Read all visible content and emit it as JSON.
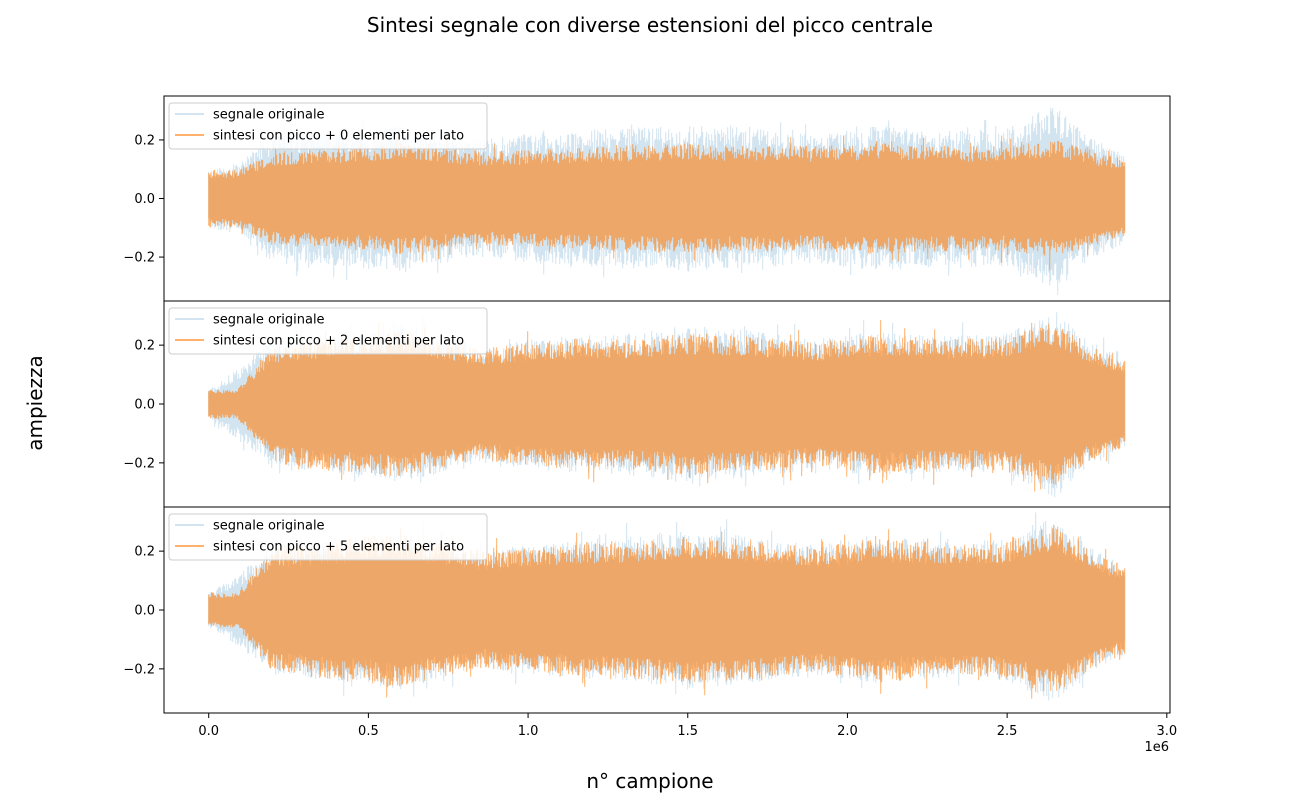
{
  "chart_data": [
    {
      "type": "line",
      "figure_title": "Sintesi segnale con diverse estensioni del picco centrale",
      "xlabel": "n° campione",
      "ylabel": "ampiezza",
      "x_offset_label": "1e6",
      "xlim": [
        -140000,
        3010000
      ],
      "ylim": [
        -0.35,
        0.35
      ],
      "x_ticks": [
        0,
        500000,
        1000000,
        1500000,
        2000000,
        2500000,
        3000000
      ],
      "x_tick_labels": [
        "0.0",
        "0.5",
        "1.0",
        "1.5",
        "2.0",
        "2.5",
        "3.0"
      ],
      "y_ticks": [
        -0.2,
        0.0,
        0.2
      ],
      "y_tick_labels": [
        "−0.2",
        "0.0",
        "0.2"
      ],
      "signal_start": 0,
      "signal_end": 2870000,
      "colors": {
        "original": "#1f77b4",
        "synthesis": "#ff7f0e"
      },
      "subplots": [
        {
          "legend": [
            "segnale originale",
            "sintesi con picco + 0 elementi per lato"
          ],
          "original_envelope": [
            [
              0,
              0.1
            ],
            [
              90000,
              0.12
            ],
            [
              200000,
              0.22
            ],
            [
              400000,
              0.24
            ],
            [
              600000,
              0.25
            ],
            [
              850000,
              0.2
            ],
            [
              1100000,
              0.23
            ],
            [
              1300000,
              0.24
            ],
            [
              1500000,
              0.25
            ],
            [
              1700000,
              0.24
            ],
            [
              1900000,
              0.22
            ],
            [
              2100000,
              0.25
            ],
            [
              2300000,
              0.23
            ],
            [
              2500000,
              0.24
            ],
            [
              2650000,
              0.32
            ],
            [
              2750000,
              0.22
            ],
            [
              2870000,
              0.15
            ]
          ],
          "synthesis_envelope": [
            [
              0,
              0.1
            ],
            [
              90000,
              0.1
            ],
            [
              200000,
              0.16
            ],
            [
              400000,
              0.17
            ],
            [
              600000,
              0.19
            ],
            [
              850000,
              0.16
            ],
            [
              1100000,
              0.17
            ],
            [
              1300000,
              0.18
            ],
            [
              1500000,
              0.19
            ],
            [
              1700000,
              0.18
            ],
            [
              1900000,
              0.18
            ],
            [
              2100000,
              0.19
            ],
            [
              2300000,
              0.18
            ],
            [
              2500000,
              0.18
            ],
            [
              2650000,
              0.2
            ],
            [
              2750000,
              0.17
            ],
            [
              2870000,
              0.13
            ]
          ]
        },
        {
          "legend": [
            "segnale originale",
            "sintesi con picco + 2 elementi per lato"
          ],
          "original_envelope": [
            [
              0,
              0.05
            ],
            [
              90000,
              0.12
            ],
            [
              200000,
              0.22
            ],
            [
              400000,
              0.24
            ],
            [
              600000,
              0.27
            ],
            [
              850000,
              0.2
            ],
            [
              1100000,
              0.23
            ],
            [
              1300000,
              0.24
            ],
            [
              1500000,
              0.27
            ],
            [
              1700000,
              0.25
            ],
            [
              1900000,
              0.22
            ],
            [
              2100000,
              0.25
            ],
            [
              2300000,
              0.23
            ],
            [
              2500000,
              0.24
            ],
            [
              2650000,
              0.32
            ],
            [
              2750000,
              0.22
            ],
            [
              2870000,
              0.15
            ]
          ],
          "synthesis_envelope": [
            [
              0,
              0.05
            ],
            [
              90000,
              0.05
            ],
            [
              200000,
              0.2
            ],
            [
              400000,
              0.23
            ],
            [
              600000,
              0.25
            ],
            [
              850000,
              0.19
            ],
            [
              1100000,
              0.22
            ],
            [
              1300000,
              0.22
            ],
            [
              1500000,
              0.24
            ],
            [
              1700000,
              0.23
            ],
            [
              1900000,
              0.21
            ],
            [
              2100000,
              0.24
            ],
            [
              2300000,
              0.22
            ],
            [
              2500000,
              0.23
            ],
            [
              2650000,
              0.28
            ],
            [
              2750000,
              0.2
            ],
            [
              2870000,
              0.15
            ]
          ]
        },
        {
          "legend": [
            "segnale originale",
            "sintesi con picco + 5 elementi per lato"
          ],
          "original_envelope": [
            [
              0,
              0.06
            ],
            [
              90000,
              0.12
            ],
            [
              200000,
              0.22
            ],
            [
              400000,
              0.24
            ],
            [
              600000,
              0.27
            ],
            [
              850000,
              0.2
            ],
            [
              1100000,
              0.23
            ],
            [
              1300000,
              0.24
            ],
            [
              1500000,
              0.27
            ],
            [
              1700000,
              0.25
            ],
            [
              1900000,
              0.22
            ],
            [
              2100000,
              0.25
            ],
            [
              2300000,
              0.23
            ],
            [
              2500000,
              0.24
            ],
            [
              2650000,
              0.32
            ],
            [
              2750000,
              0.22
            ],
            [
              2870000,
              0.15
            ]
          ],
          "synthesis_envelope": [
            [
              0,
              0.06
            ],
            [
              90000,
              0.06
            ],
            [
              200000,
              0.21
            ],
            [
              400000,
              0.24
            ],
            [
              600000,
              0.26
            ],
            [
              850000,
              0.2
            ],
            [
              1100000,
              0.22
            ],
            [
              1300000,
              0.23
            ],
            [
              1500000,
              0.25
            ],
            [
              1700000,
              0.24
            ],
            [
              1900000,
              0.21
            ],
            [
              2100000,
              0.25
            ],
            [
              2300000,
              0.22
            ],
            [
              2500000,
              0.23
            ],
            [
              2650000,
              0.29
            ],
            [
              2750000,
              0.21
            ],
            [
              2870000,
              0.15
            ]
          ]
        }
      ]
    }
  ]
}
